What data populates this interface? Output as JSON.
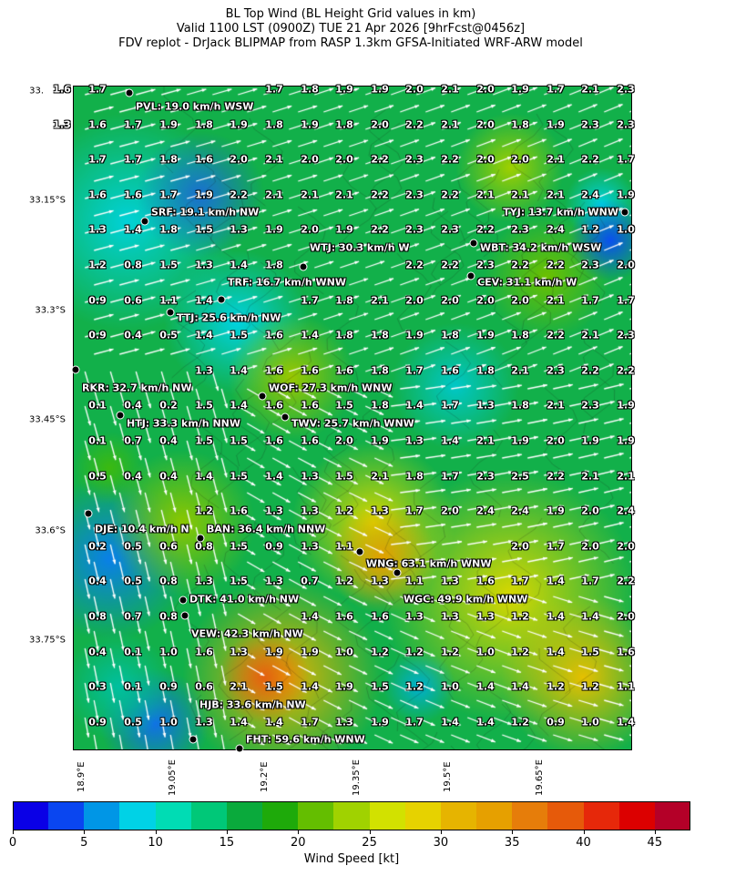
{
  "header": {
    "line1": "BL Top Wind (BL Height Grid values in km)",
    "line2": "Valid 1100 LST (0900Z) TUE 21 Apr 2026 [9hrFcst@0456z]",
    "line3": "FDV replot - DrJack BLIPMAP from RASP 1.3km GFSA-Initiated WRF-ARW model"
  },
  "lat_labels": [
    "33.",
    "33.15°S",
    "33.3°S",
    "33.45°S",
    "33.6°S",
    "33.75°S"
  ],
  "lon_labels": [
    "18.9°E",
    "19.05°E",
    "19.2°E",
    "19.35°E",
    "19.5°E",
    "19.65°E"
  ],
  "grid_values": [
    [
      "1.6",
      "1.7",
      null,
      null,
      null,
      null,
      "1.7",
      "1.8",
      "1.9",
      "1.9",
      "2.0",
      "2.1",
      "2.0",
      "1.9",
      "1.7",
      "2.1",
      "2.3"
    ],
    [
      "1.3",
      "1.6",
      "1.7",
      "1.9",
      "1.8",
      "1.9",
      "1.8",
      "1.9",
      "1.8",
      "2.0",
      "2.2",
      "2.1",
      "2.0",
      "1.8",
      "1.9",
      "2.3",
      "2.3"
    ],
    [
      null,
      "1.7",
      "1.7",
      "1.8",
      "1.6",
      "2.0",
      "2.1",
      "2.0",
      "2.0",
      "2.2",
      "2.3",
      "2.2",
      "2.0",
      "2.0",
      "2.1",
      "2.2",
      "1.7"
    ],
    [
      null,
      "1.6",
      "1.6",
      "1.7",
      "1.9",
      "2.2",
      "2.1",
      "2.1",
      "2.1",
      "2.2",
      "2.3",
      "2.2",
      "2.1",
      "2.1",
      "2.1",
      "2.4",
      "1.9"
    ],
    [
      null,
      "1.3",
      "1.4",
      "1.8",
      "1.5",
      "1.3",
      "1.9",
      "2.0",
      "1.9",
      "2.2",
      "2.3",
      "2.3",
      "2.2",
      "2.3",
      "2.4",
      "1.2",
      "1.0"
    ],
    [
      null,
      "1.2",
      "0.8",
      "1.5",
      "1.3",
      "1.4",
      "1.8",
      null,
      null,
      null,
      "2.2",
      "2.2",
      "2.3",
      "2.2",
      "2.2",
      "2.3",
      "2.0"
    ],
    [
      null,
      "0.9",
      "0.6",
      "1.1",
      "1.4",
      null,
      null,
      "1.7",
      "1.8",
      "2.1",
      "2.0",
      "2.0",
      "2.0",
      "2.0",
      "2.1",
      "1.7",
      "1.7"
    ],
    [
      null,
      "0.9",
      "0.4",
      "0.5",
      "1.4",
      "1.5",
      "1.6",
      "1.4",
      "1.8",
      "1.8",
      "1.9",
      "1.8",
      "1.9",
      "1.8",
      "2.2",
      "2.1",
      "2.3"
    ],
    [
      null,
      null,
      null,
      null,
      "1.3",
      "1.4",
      "1.6",
      "1.6",
      "1.6",
      "1.8",
      "1.7",
      "1.6",
      "1.8",
      "2.1",
      "2.3",
      "2.2",
      "2.2"
    ],
    [
      null,
      "0.1",
      "0.4",
      "0.2",
      "1.5",
      "1.4",
      "1.6",
      "1.6",
      "1.5",
      "1.8",
      "1.4",
      "1.7",
      "1.3",
      "1.8",
      "2.1",
      "2.3",
      "1.9"
    ],
    [
      null,
      "0.1",
      "0.7",
      "0.4",
      "1.5",
      "1.5",
      "1.6",
      "1.6",
      "2.0",
      "1.9",
      "1.3",
      "1.4",
      "2.1",
      "1.9",
      "2.0",
      "1.9",
      "1.9"
    ],
    [
      null,
      "0.5",
      "0.4",
      "0.4",
      "1.4",
      "1.5",
      "1.4",
      "1.3",
      "1.5",
      "2.1",
      "1.8",
      "1.7",
      "2.3",
      "2.5",
      "2.2",
      "2.1",
      "2.1"
    ],
    [
      null,
      null,
      null,
      null,
      "1.2",
      "1.6",
      "1.3",
      "1.3",
      "1.2",
      "1.3",
      "1.7",
      "2.0",
      "2.4",
      "2.4",
      "1.9",
      "2.0",
      "2.4"
    ],
    [
      null,
      "0.2",
      "0.5",
      "0.6",
      "0.8",
      "1.5",
      "0.9",
      "1.3",
      "1.1",
      null,
      null,
      null,
      null,
      "2.0",
      "1.7",
      "2.0",
      "2.0"
    ],
    [
      null,
      "0.4",
      "0.5",
      "0.8",
      "1.3",
      "1.5",
      "1.3",
      "0.7",
      "1.2",
      "1.3",
      "1.1",
      "1.3",
      "1.6",
      "1.7",
      "1.4",
      "1.7",
      "2.2"
    ],
    [
      null,
      "0.8",
      "0.7",
      "0.8",
      null,
      null,
      null,
      "1.4",
      "1.6",
      "1.6",
      "1.3",
      "1.3",
      "1.3",
      "1.2",
      "1.4",
      "1.4",
      "2.0"
    ],
    [
      null,
      "0.4",
      "0.1",
      "1.0",
      "1.6",
      "1.3",
      "1.9",
      "1.9",
      "1.0",
      "1.2",
      "1.2",
      "1.2",
      "1.0",
      "1.2",
      "1.4",
      "1.5",
      "1.6"
    ],
    [
      null,
      "0.3",
      "0.1",
      "0.9",
      "0.6",
      "2.1",
      "1.5",
      "1.4",
      "1.9",
      "1.5",
      "1.2",
      "1.0",
      "1.4",
      "1.4",
      "1.2",
      "1.2",
      "1.1"
    ],
    [
      null,
      "0.9",
      "0.5",
      "1.0",
      "1.3",
      "1.4",
      "1.4",
      "1.7",
      "1.3",
      "1.9",
      "1.7",
      "1.4",
      "1.4",
      "1.2",
      "0.9",
      "1.0",
      "1.4"
    ]
  ],
  "stations": [
    "PVL: 19.0 km/h WSW",
    "SRF: 19.1 km/h NW",
    "TYJ: 13.7 km/h WNW",
    "WBT: 34.2 km/h WSW",
    "WTJ: 30.3 km/h W",
    "CEV: 31.1 km/h W",
    "TRF: 16.7 km/h WNW",
    "TTJ: 25.6 km/h NW",
    "RKR: 32.7 km/h NW",
    "WOF: 27.3 km/h WNW",
    "HTJ: 33.3 km/h NNW",
    "TWV: 25.7 km/h WNW",
    "DJE: 10.4 km/h N",
    "BAN: 36.4 km/h NNW",
    "WNG: 63.1 km/h WNW",
    "WGC: 49.9 km/h WNW",
    "DTK: 41.0 km/h NW",
    "VEW: 42.3 km/h NW",
    "HJB: 33.6 km/h NW",
    "FHT: 59.6 km/h WNW"
  ],
  "colorbar": {
    "label": "Wind Speed [kt]",
    "ticks": [
      "0",
      "5",
      "10",
      "15",
      "20",
      "25",
      "30",
      "35",
      "40",
      "45"
    ],
    "colors": [
      "#0a00e6",
      "#0a46f0",
      "#0096e6",
      "#00d2e6",
      "#00dcb4",
      "#00c878",
      "#0aaa3c",
      "#1eaa0a",
      "#64be00",
      "#a0d200",
      "#d2e100",
      "#e6d200",
      "#e6b400",
      "#e6a000",
      "#e67d0a",
      "#e65a0a",
      "#e6280a",
      "#dc0000",
      "#b40028"
    ]
  },
  "overlay": {
    "arrow_color": "#ffffff",
    "contour_color": "#1a1a1a"
  }
}
